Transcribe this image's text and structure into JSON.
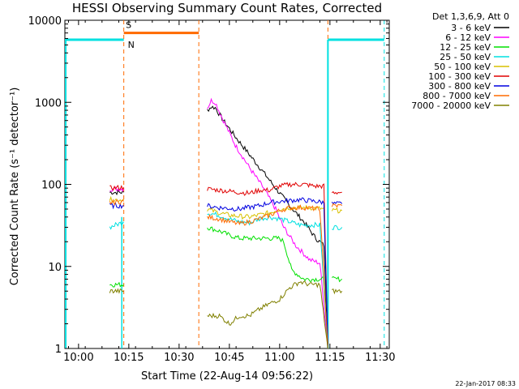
{
  "chart_data": {
    "type": "line",
    "title": "HESSI Observing Summary Count Rates, Corrected",
    "xlabel": "Start Time (22-Aug-14 09:56:22)",
    "ylabel": "Corrected Count Rate (s⁻¹ detector⁻¹)",
    "footer_date": "22-Jan-2017 08:33",
    "y_scale": "log",
    "xlim": [
      9.932,
      11.545
    ],
    "ylim": [
      1,
      10000
    ],
    "x_ticks": [
      {
        "t": 10.0,
        "label": "10:00"
      },
      {
        "t": 10.25,
        "label": "10:15"
      },
      {
        "t": 10.5,
        "label": "10:30"
      },
      {
        "t": 10.75,
        "label": "10:45"
      },
      {
        "t": 11.0,
        "label": "11:00"
      },
      {
        "t": 11.25,
        "label": "11:15"
      },
      {
        "t": 11.5,
        "label": "11:30"
      }
    ],
    "y_ticks": [
      {
        "v": 1,
        "label": "1"
      },
      {
        "v": 10,
        "label": "10"
      },
      {
        "v": 100,
        "label": "100"
      },
      {
        "v": 1000,
        "label": "1000"
      },
      {
        "v": 10000,
        "label": "10000"
      }
    ],
    "legend": {
      "title": "Det 1,3,6,9, Att 0",
      "placement": "outside-right"
    },
    "flags": {
      "s_label": "S",
      "n_label": "N",
      "flag_level": 7000,
      "night_level": 5800,
      "saa_color": "#ff6a00",
      "night_color": "#00e0e0",
      "night_intervals": [
        [
          9.932,
          10.225
        ],
        [
          11.24,
          11.52
        ]
      ],
      "saa_interval": [
        10.225,
        10.598
      ],
      "dashed_lines": [
        {
          "t": 10.225,
          "color": "#ff6a00"
        },
        {
          "t": 10.598,
          "color": "#ff6a00"
        },
        {
          "t": 11.24,
          "color": "#ff6a00"
        },
        {
          "t": 11.52,
          "color": "#00e0e0"
        }
      ]
    },
    "series": [
      {
        "name": "3 - 6 keV",
        "color": "#000000",
        "segments": [
          [
            [
              10.155,
              80
            ],
            [
              10.225,
              80
            ]
          ],
          [
            [
              10.64,
              800
            ],
            [
              10.66,
              880
            ],
            [
              10.68,
              860
            ],
            [
              10.72,
              600
            ],
            [
              10.78,
              380
            ],
            [
              10.85,
              230
            ],
            [
              10.92,
              140
            ],
            [
              10.98,
              90
            ],
            [
              11.05,
              55
            ],
            [
              11.12,
              35
            ],
            [
              11.18,
              22
            ],
            [
              11.22,
              18
            ],
            [
              11.24,
              1
            ]
          ]
        ]
      },
      {
        "name": "6 - 12 keV",
        "color": "#ff00ff",
        "segments": [
          [
            [
              10.155,
              88
            ],
            [
              10.225,
              88
            ]
          ],
          [
            [
              10.64,
              850
            ],
            [
              10.66,
              1050
            ],
            [
              10.68,
              1000
            ],
            [
              10.72,
              600
            ],
            [
              10.78,
              300
            ],
            [
              10.85,
              160
            ],
            [
              10.92,
              90
            ],
            [
              10.98,
              50
            ],
            [
              11.02,
              30
            ],
            [
              11.08,
              18
            ],
            [
              11.15,
              12
            ],
            [
              11.2,
              11
            ],
            [
              11.24,
              1
            ]
          ]
        ]
      },
      {
        "name": "12 - 25 keV",
        "color": "#00e000",
        "segments": [
          [
            [
              10.155,
              6
            ],
            [
              10.225,
              6
            ]
          ],
          [
            [
              10.64,
              30
            ],
            [
              10.7,
              27
            ],
            [
              10.75,
              24
            ],
            [
              10.8,
              22
            ],
            [
              10.9,
              22
            ],
            [
              11.0,
              22
            ],
            [
              11.02,
              20
            ],
            [
              11.06,
              9
            ],
            [
              11.12,
              7
            ],
            [
              11.18,
              7
            ],
            [
              11.22,
              7
            ],
            [
              11.24,
              1
            ]
          ],
          [
            [
              11.26,
              7
            ],
            [
              11.31,
              7
            ]
          ]
        ]
      },
      {
        "name": "25 - 50 keV",
        "color": "#00e0e0",
        "segments": [
          [
            [
              10.155,
              30
            ],
            [
              10.225,
              35
            ]
          ],
          [
            [
              10.64,
              45
            ],
            [
              10.7,
              42
            ],
            [
              10.75,
              38
            ],
            [
              10.8,
              35
            ],
            [
              10.85,
              34
            ],
            [
              10.9,
              38
            ],
            [
              10.95,
              40
            ],
            [
              11.0,
              38
            ],
            [
              11.05,
              35
            ],
            [
              11.1,
              32
            ],
            [
              11.2,
              32
            ],
            [
              11.24,
              1
            ]
          ],
          [
            [
              11.26,
              30
            ],
            [
              11.31,
              30
            ]
          ]
        ]
      },
      {
        "name": "50 - 100 keV",
        "color": "#d8c000",
        "segments": [
          [
            [
              10.155,
              65
            ],
            [
              10.225,
              65
            ]
          ],
          [
            [
              10.64,
              50
            ],
            [
              10.7,
              45
            ],
            [
              10.75,
              42
            ],
            [
              10.85,
              40
            ],
            [
              10.95,
              45
            ],
            [
              11.0,
              50
            ],
            [
              11.05,
              52
            ],
            [
              11.15,
              52
            ],
            [
              11.22,
              50
            ],
            [
              11.24,
              1
            ]
          ],
          [
            [
              11.26,
              48
            ],
            [
              11.31,
              48
            ]
          ]
        ]
      },
      {
        "name": "100 - 300 keV",
        "color": "#e00000",
        "segments": [
          [
            [
              10.155,
              90
            ],
            [
              10.225,
              92
            ]
          ],
          [
            [
              10.64,
              88
            ],
            [
              10.7,
              85
            ],
            [
              10.8,
              80
            ],
            [
              10.85,
              78
            ],
            [
              10.9,
              85
            ],
            [
              10.95,
              85
            ],
            [
              11.0,
              95
            ],
            [
              11.05,
              100
            ],
            [
              11.12,
              100
            ],
            [
              11.18,
              95
            ],
            [
              11.22,
              95
            ],
            [
              11.24,
              1
            ]
          ],
          [
            [
              11.26,
              80
            ],
            [
              11.31,
              80
            ]
          ]
        ]
      },
      {
        "name": "300 - 800 keV",
        "color": "#0000e0",
        "segments": [
          [
            [
              10.155,
              55
            ],
            [
              10.225,
              55
            ]
          ],
          [
            [
              10.64,
              55
            ],
            [
              10.7,
              52
            ],
            [
              10.8,
              50
            ],
            [
              10.9,
              55
            ],
            [
              10.95,
              60
            ],
            [
              11.0,
              62
            ],
            [
              11.1,
              65
            ],
            [
              11.18,
              62
            ],
            [
              11.22,
              60
            ],
            [
              11.24,
              1
            ]
          ],
          [
            [
              11.26,
              58
            ],
            [
              11.31,
              58
            ]
          ]
        ]
      },
      {
        "name": "800 - 7000 keV",
        "color": "#ff6a00",
        "segments": [
          [
            [
              10.155,
              60
            ],
            [
              10.225,
              62
            ]
          ],
          [
            [
              10.64,
              40
            ],
            [
              10.7,
              38
            ],
            [
              10.75,
              35
            ],
            [
              10.8,
              33
            ],
            [
              10.85,
              35
            ],
            [
              10.9,
              38
            ],
            [
              10.95,
              42
            ],
            [
              11.0,
              48
            ],
            [
              11.05,
              52
            ],
            [
              11.12,
              52
            ],
            [
              11.2,
              50
            ],
            [
              11.24,
              1
            ]
          ],
          [
            [
              11.26,
              55
            ],
            [
              11.31,
              55
            ]
          ]
        ]
      },
      {
        "name": "7000 - 20000 keV",
        "color": "#808000",
        "segments": [
          [
            [
              10.155,
              5
            ],
            [
              10.225,
              5
            ]
          ],
          [
            [
              10.64,
              2.5
            ],
            [
              10.7,
              2.5
            ],
            [
              10.75,
              2
            ],
            [
              10.8,
              2.5
            ],
            [
              10.85,
              2.5
            ],
            [
              10.9,
              3
            ],
            [
              10.95,
              3.5
            ],
            [
              11.0,
              4
            ],
            [
              11.05,
              5.5
            ],
            [
              11.1,
              6.5
            ],
            [
              11.15,
              6
            ],
            [
              11.2,
              6
            ],
            [
              11.24,
              1
            ]
          ],
          [
            [
              11.26,
              5
            ],
            [
              11.31,
              5
            ]
          ]
        ]
      }
    ]
  }
}
